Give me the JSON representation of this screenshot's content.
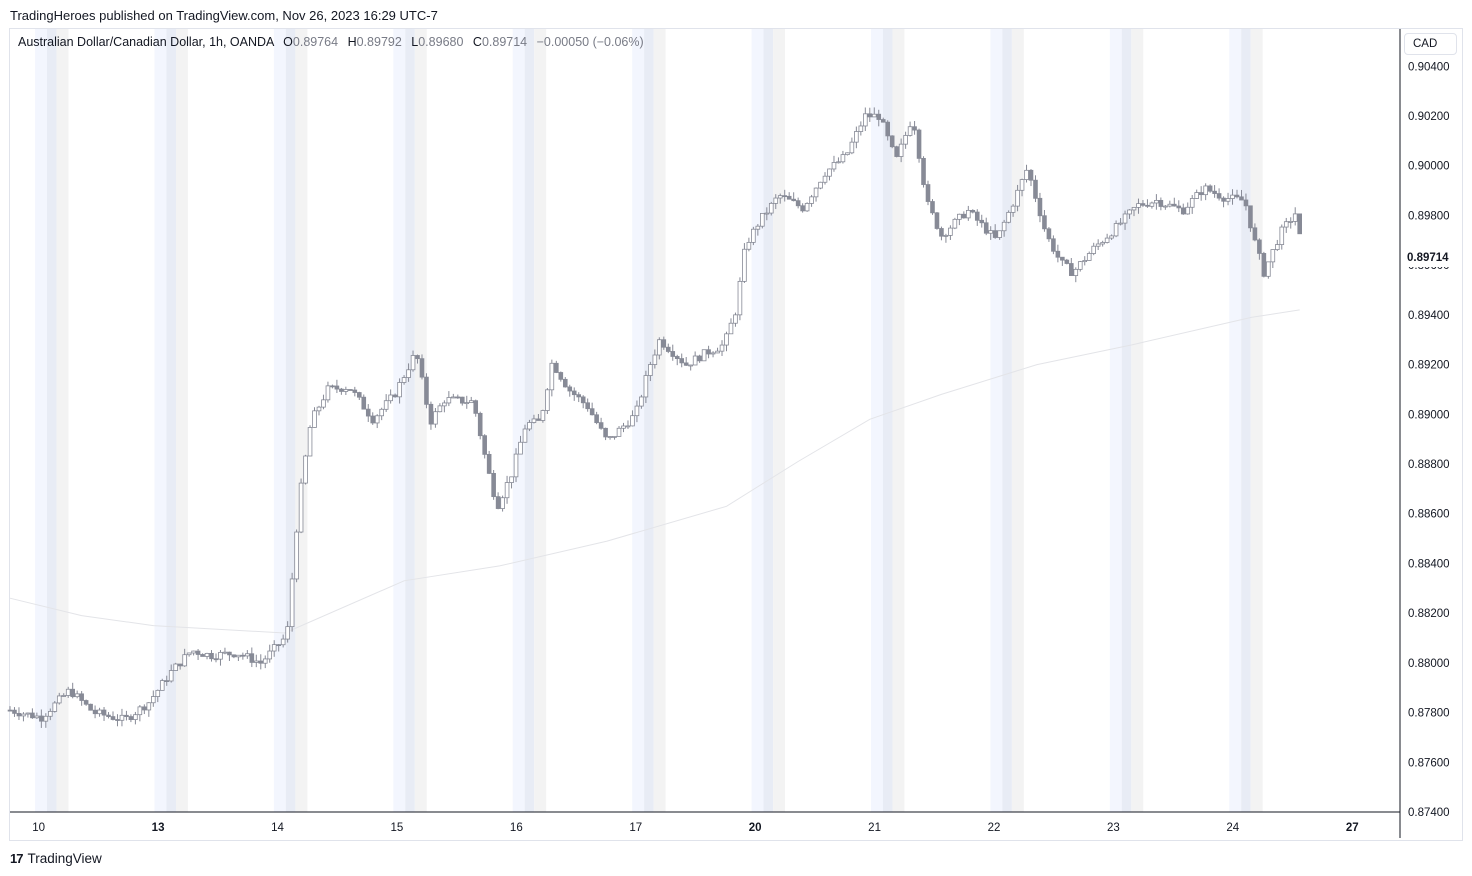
{
  "header": {
    "published_line": "TradingHeroes published on TradingView.com, Nov 26, 2023 16:29 UTC-7"
  },
  "legend": {
    "symbol": "Australian Dollar/Canadian Dollar, 1h, OANDA",
    "o_label": "O",
    "o_value": "0.89764",
    "h_label": "H",
    "h_value": "0.89792",
    "l_label": "L",
    "l_value": "0.89680",
    "c_label": "C",
    "c_value": "0.89714",
    "change": "−0.00050 (−0.06%)"
  },
  "currency_badge": "CAD",
  "last_price_label": "0.89714",
  "footer": {
    "logo_mark": "17",
    "logo_text": "TradingView"
  },
  "colors": {
    "candle": "#878a96",
    "candle_hollow_fill": "#ffffff",
    "ma_line": "#e3e4e8",
    "session_asia": "#f3f6fe",
    "session_asia_overlap": "#e8ecf5",
    "session_europe": "#f3f3f3",
    "axis_line": "#131722",
    "grid_text": "#131722"
  },
  "chart_data": {
    "type": "candlestick",
    "title": "Australian Dollar/Canadian Dollar, 1h, OANDA",
    "xlabel": "",
    "ylabel": "",
    "ylim": [
      0.874,
      0.9055
    ],
    "y_ticks": [
      "0.90400",
      "0.90200",
      "0.90000",
      "0.89800",
      "0.89600",
      "0.89400",
      "0.89200",
      "0.89000",
      "0.88800",
      "0.88600",
      "0.88400",
      "0.88200",
      "0.88000",
      "0.87800",
      "0.87600",
      "0.87400"
    ],
    "x_ticks": [
      {
        "label": "10",
        "bold": false,
        "t": 1.2
      },
      {
        "label": "13",
        "bold": true,
        "t": 6.2
      },
      {
        "label": "14",
        "bold": false,
        "t": 11.2
      },
      {
        "label": "15",
        "bold": false,
        "t": 16.2
      },
      {
        "label": "16",
        "bold": false,
        "t": 21.2
      },
      {
        "label": "17",
        "bold": false,
        "t": 26.2
      },
      {
        "label": "20",
        "bold": true,
        "t": 31.2
      },
      {
        "label": "21",
        "bold": false,
        "t": 36.2
      },
      {
        "label": "22",
        "bold": false,
        "t": 41.2
      },
      {
        "label": "23",
        "bold": false,
        "t": 46.2
      },
      {
        "label": "24",
        "bold": false,
        "t": 51.2
      },
      {
        "label": "27",
        "bold": true,
        "t": 56.2
      }
    ],
    "t_range": [
      0,
      58.2
    ],
    "session_days_t": [
      1.2,
      6.2,
      11.2,
      16.2,
      21.2,
      26.2,
      31.2,
      36.2,
      41.2,
      46.2,
      51.2
    ],
    "anchors": [
      [
        0,
        0.8781
      ],
      [
        1.3,
        0.8778
      ],
      [
        2.5,
        0.8789
      ],
      [
        3.5,
        0.878
      ],
      [
        4.8,
        0.8777
      ],
      [
        5.8,
        0.8784
      ],
      [
        6.8,
        0.8797
      ],
      [
        7.6,
        0.8805
      ],
      [
        8.4,
        0.8803
      ],
      [
        9.5,
        0.8804
      ],
      [
        10.5,
        0.88
      ],
      [
        11.6,
        0.8811
      ],
      [
        12.1,
        0.8865
      ],
      [
        12.6,
        0.8897
      ],
      [
        13.3,
        0.891
      ],
      [
        14.2,
        0.8911
      ],
      [
        15.2,
        0.8898
      ],
      [
        16.1,
        0.8908
      ],
      [
        17.0,
        0.8925
      ],
      [
        17.6,
        0.8897
      ],
      [
        18.2,
        0.8906
      ],
      [
        19.4,
        0.8905
      ],
      [
        20.0,
        0.8878
      ],
      [
        20.4,
        0.8863
      ],
      [
        21.0,
        0.8876
      ],
      [
        21.6,
        0.8896
      ],
      [
        22.2,
        0.8897
      ],
      [
        22.7,
        0.8921
      ],
      [
        23.4,
        0.891
      ],
      [
        24.2,
        0.8903
      ],
      [
        25.0,
        0.8889
      ],
      [
        26.2,
        0.89
      ],
      [
        26.8,
        0.892
      ],
      [
        27.2,
        0.893
      ],
      [
        28.3,
        0.892
      ],
      [
        29.2,
        0.8925
      ],
      [
        29.9,
        0.8928
      ],
      [
        30.4,
        0.8942
      ],
      [
        30.8,
        0.8968
      ],
      [
        31.4,
        0.8978
      ],
      [
        32.2,
        0.8988
      ],
      [
        33.2,
        0.8983
      ],
      [
        34.1,
        0.8997
      ],
      [
        35.0,
        0.9004
      ],
      [
        35.8,
        0.902
      ],
      [
        36.4,
        0.902
      ],
      [
        37.1,
        0.9002
      ],
      [
        37.8,
        0.902
      ],
      [
        38.4,
        0.8985
      ],
      [
        39.0,
        0.8972
      ],
      [
        40.1,
        0.8982
      ],
      [
        41.3,
        0.897
      ],
      [
        42.0,
        0.8985
      ],
      [
        42.6,
        0.8999
      ],
      [
        43.4,
        0.8972
      ],
      [
        44.0,
        0.8961
      ],
      [
        44.5,
        0.8957
      ],
      [
        45.3,
        0.8966
      ],
      [
        46.3,
        0.8975
      ],
      [
        47.2,
        0.8984
      ],
      [
        48.0,
        0.8986
      ],
      [
        49.1,
        0.8982
      ],
      [
        50.0,
        0.8991
      ],
      [
        50.9,
        0.8987
      ],
      [
        51.7,
        0.8986
      ],
      [
        52.1,
        0.897
      ],
      [
        52.5,
        0.8957
      ],
      [
        53.2,
        0.8973
      ],
      [
        53.9,
        0.8982
      ],
      [
        54.0,
        0.89714
      ]
    ],
    "ma_line": [
      [
        0,
        0.8826
      ],
      [
        3,
        0.8819
      ],
      [
        6,
        0.8815
      ],
      [
        11.5,
        0.8812
      ],
      [
        16.5,
        0.8833
      ],
      [
        20.5,
        0.8839
      ],
      [
        25,
        0.8849
      ],
      [
        30,
        0.8863
      ],
      [
        33,
        0.8881
      ],
      [
        36,
        0.8898
      ],
      [
        39,
        0.8908
      ],
      [
        43,
        0.892
      ],
      [
        47,
        0.8928
      ],
      [
        52,
        0.8939
      ],
      [
        54,
        0.8942
      ]
    ]
  }
}
